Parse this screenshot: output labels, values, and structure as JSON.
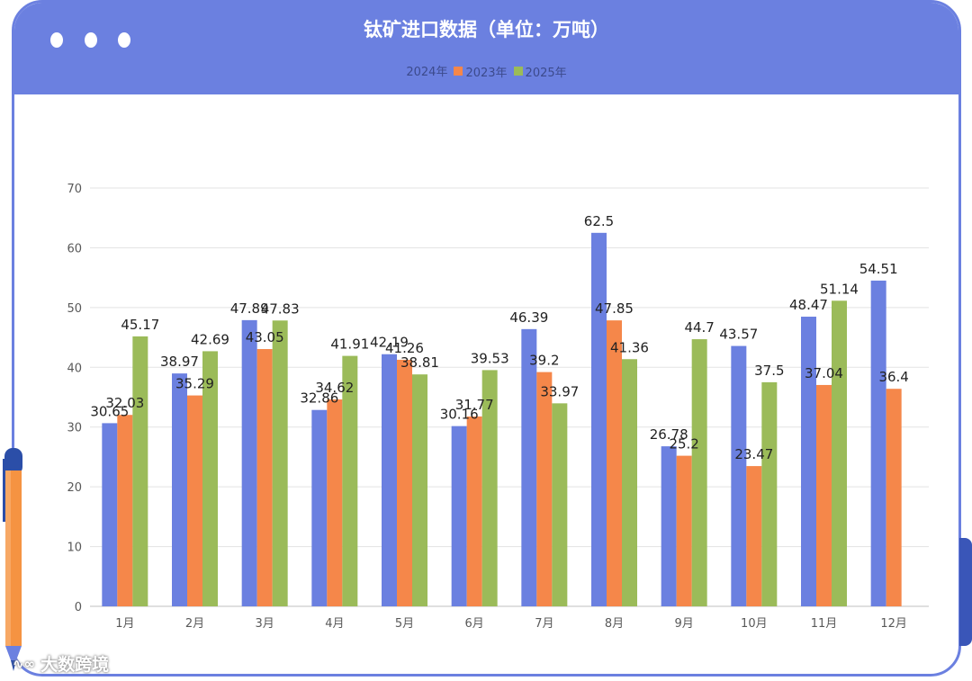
{
  "chart_data": {
    "type": "bar",
    "title": "钛矿进口数据（单位：万吨）",
    "categories": [
      "1月",
      "2月",
      "3月",
      "4月",
      "5月",
      "6月",
      "7月",
      "8月",
      "9月",
      "10月",
      "11月",
      "12月"
    ],
    "series": [
      {
        "name": "2024年",
        "color": "#6b80e0",
        "values": [
          30.65,
          38.97,
          47.89,
          32.86,
          42.19,
          30.16,
          46.39,
          62.5,
          26.78,
          43.57,
          48.47,
          54.51
        ],
        "labels": [
          "30.65",
          "38.97",
          "47.89",
          "32.86",
          "42.19",
          "30.16",
          "46.39",
          "62.5",
          "26.78",
          "43.57",
          "48.47",
          "54.51"
        ]
      },
      {
        "name": "2023年",
        "color": "#f5874a",
        "values": [
          32.03,
          35.29,
          43.05,
          34.62,
          41.26,
          31.77,
          39.2,
          47.85,
          25.2,
          23.47,
          37.04,
          36.4
        ],
        "labels": [
          "32.03",
          "35.29",
          "43.05",
          "34.62",
          "41.26",
          "31.77",
          "39.2",
          "47.85",
          "25.2",
          "23.47",
          "37.04",
          "36.4"
        ]
      },
      {
        "name": "2025年",
        "color": "#9bbb59",
        "values": [
          45.17,
          42.69,
          47.83,
          41.91,
          38.81,
          39.53,
          33.97,
          41.36,
          44.7,
          37.5,
          51.14,
          null
        ],
        "labels": [
          "45.17",
          "42.69",
          "47.83",
          "41.91",
          "38.81",
          "39.53",
          "33.97",
          "41.36",
          "44.7",
          "37.5",
          "51.14",
          ""
        ]
      }
    ],
    "yticks": [
      "0",
      "10",
      "20",
      "30",
      "40",
      "50",
      "60",
      "70"
    ],
    "ylim": [
      0,
      70
    ],
    "grid": true,
    "legend_position": "top-center"
  },
  "watermark": {
    "text": "大数跨境",
    "logo": "∿∞"
  }
}
